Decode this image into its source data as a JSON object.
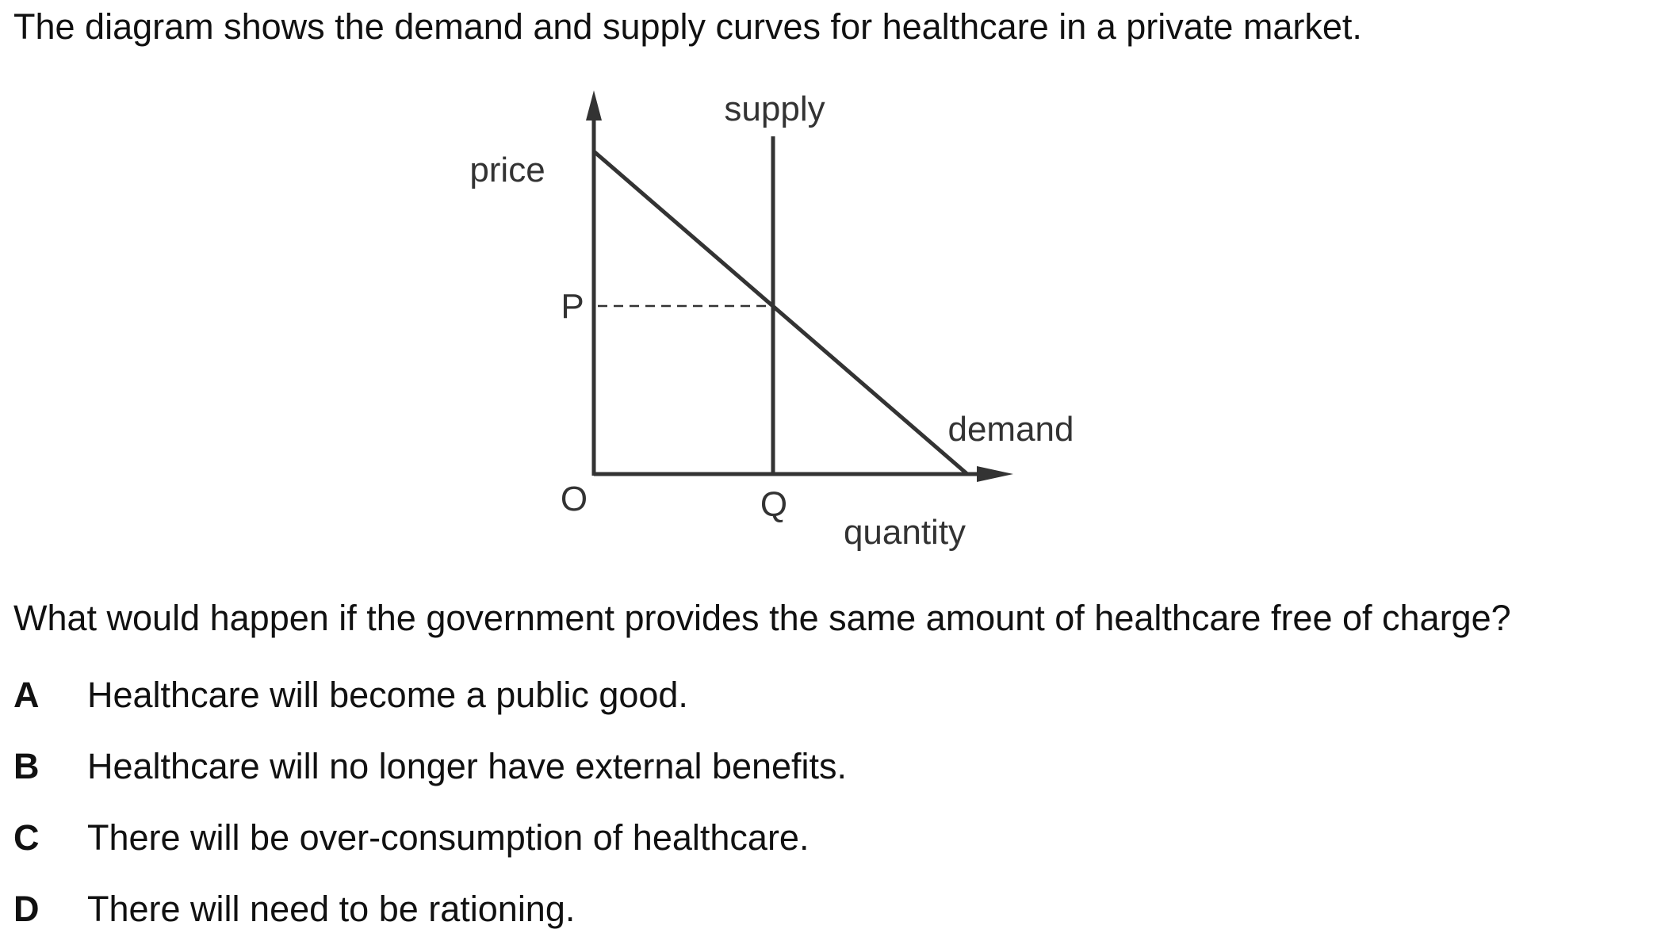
{
  "intro": "The diagram shows the demand and supply curves for healthcare in a private market.",
  "diagram": {
    "supply_label": "supply",
    "price_label": "price",
    "price_point_label": "P",
    "demand_label": "demand",
    "origin_label": "O",
    "quantity_point_label": "Q",
    "quantity_label": "quantity"
  },
  "question": "What would happen if the government provides the same amount of healthcare free of charge?",
  "options": [
    {
      "letter": "A",
      "text": "Healthcare will become a public good."
    },
    {
      "letter": "B",
      "text": "Healthcare will no longer have external benefits."
    },
    {
      "letter": "C",
      "text": "There will be over-consumption of healthcare."
    },
    {
      "letter": "D",
      "text": "There will need to be rationing."
    }
  ]
}
